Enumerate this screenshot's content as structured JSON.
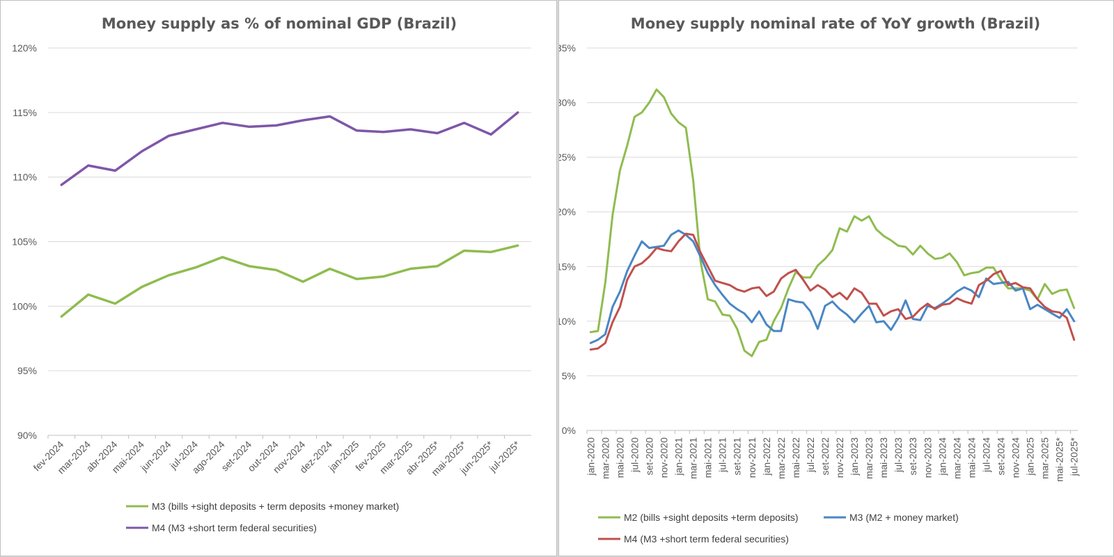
{
  "chart_data": [
    {
      "type": "line",
      "title": "Money supply as % of nominal GDP (Brazil)",
      "ylim": [
        0.9,
        1.2
      ],
      "yticks": [
        {
          "value": 0.9,
          "label": "90%"
        },
        {
          "value": 0.95,
          "label": "95%"
        },
        {
          "value": 1.0,
          "label": "100%"
        },
        {
          "value": 1.05,
          "label": "105%"
        },
        {
          "value": 1.1,
          "label": "110%"
        },
        {
          "value": 1.15,
          "label": "115%"
        },
        {
          "value": 1.2,
          "label": "120%"
        }
      ],
      "categories": [
        "fev-2024",
        "mar-2024",
        "abr-2024",
        "mai-2024",
        "jun-2024",
        "jul-2024",
        "ago-2024",
        "set-2024",
        "out-2024",
        "nov-2024",
        "dez-2024",
        "jan-2025",
        "fev-2025",
        "mar-2025",
        "abr-2025*",
        "mai-2025*",
        "jun-2025*",
        "jul-2025*"
      ],
      "series": [
        {
          "name": "M3 (bills +sight deposits + term deposits +money market)",
          "color": "#8fbc4f",
          "values": [
            0.992,
            1.009,
            1.002,
            1.015,
            1.024,
            1.03,
            1.038,
            1.031,
            1.028,
            1.019,
            1.029,
            1.021,
            1.023,
            1.029,
            1.031,
            1.043,
            1.042,
            1.047
          ]
        },
        {
          "name": "M4 (M3 +short term federal securities)",
          "color": "#7e57a8",
          "values": [
            1.094,
            1.109,
            1.105,
            1.12,
            1.132,
            1.137,
            1.142,
            1.139,
            1.14,
            1.144,
            1.147,
            1.136,
            1.135,
            1.137,
            1.134,
            1.142,
            1.133,
            1.15
          ]
        }
      ],
      "legend": "bottom"
    },
    {
      "type": "line",
      "title": "Money supply nominal rate of YoY growth (Brazil)",
      "ylim": [
        0,
        0.35
      ],
      "yticks": [
        {
          "value": 0.0,
          "label": "0%"
        },
        {
          "value": 0.05,
          "label": "5%"
        },
        {
          "value": 0.1,
          "label": "10%"
        },
        {
          "value": 0.15,
          "label": "15%"
        },
        {
          "value": 0.2,
          "label": "20%"
        },
        {
          "value": 0.25,
          "label": "25%"
        },
        {
          "value": 0.3,
          "label": "30%"
        },
        {
          "value": 0.35,
          "label": "35%"
        }
      ],
      "xticks": [
        "jan-2020",
        "mar-2020",
        "mai-2020",
        "jul-2020",
        "set-2020",
        "nov-2020",
        "jan-2021",
        "mar-2021",
        "mai-2021",
        "jul-2021",
        "set-2021",
        "nov-2021",
        "jan-2022",
        "mar-2022",
        "mai-2022",
        "jul-2022",
        "set-2022",
        "nov-2022",
        "jan-2023",
        "mar-2023",
        "mai-2023",
        "jul-2023",
        "set-2023",
        "nov-2023",
        "jan-2024",
        "mar-2024",
        "mai-2024",
        "jul-2024",
        "set-2024",
        "nov-2024",
        "jan-2025",
        "mar-2025",
        "mai-2025*",
        "jul-2025*"
      ],
      "n_points": 67,
      "series": [
        {
          "name": "M2 (bills +sight deposits +term deposits)",
          "color": "#8fbc4f",
          "values": [
            0.09,
            0.091,
            0.135,
            0.197,
            0.238,
            0.261,
            0.287,
            0.291,
            0.3,
            0.312,
            0.305,
            0.29,
            0.282,
            0.277,
            0.229,
            0.155,
            0.12,
            0.118,
            0.106,
            0.105,
            0.093,
            0.073,
            0.068,
            0.081,
            0.083,
            0.1,
            0.112,
            0.13,
            0.145,
            0.14,
            0.14,
            0.151,
            0.157,
            0.165,
            0.185,
            0.182,
            0.196,
            0.192,
            0.196,
            0.184,
            0.178,
            0.174,
            0.169,
            0.168,
            0.161,
            0.169,
            0.162,
            0.157,
            0.158,
            0.162,
            0.154,
            0.142,
            0.144,
            0.145,
            0.149,
            0.149,
            0.138,
            0.13,
            0.13,
            0.13,
            0.128,
            0.12,
            0.134,
            0.125,
            0.128,
            0.129,
            0.112
          ]
        },
        {
          "name": "M3 (M2 + money market)",
          "color": "#4a86c5",
          "values": [
            0.08,
            0.083,
            0.088,
            0.113,
            0.127,
            0.146,
            0.16,
            0.173,
            0.167,
            0.168,
            0.169,
            0.179,
            0.183,
            0.179,
            0.173,
            0.159,
            0.144,
            0.133,
            0.124,
            0.116,
            0.111,
            0.107,
            0.099,
            0.109,
            0.097,
            0.091,
            0.091,
            0.12,
            0.118,
            0.117,
            0.109,
            0.093,
            0.114,
            0.118,
            0.111,
            0.106,
            0.099,
            0.107,
            0.114,
            0.099,
            0.1,
            0.092,
            0.103,
            0.119,
            0.102,
            0.101,
            0.114,
            0.112,
            0.116,
            0.121,
            0.127,
            0.131,
            0.128,
            0.122,
            0.139,
            0.134,
            0.135,
            0.136,
            0.128,
            0.13,
            0.111,
            0.115,
            0.111,
            0.107,
            0.103,
            0.111,
            0.1
          ]
        },
        {
          "name": "M4 (M3 +short term federal securities)",
          "color": "#c0504d",
          "values": [
            0.074,
            0.075,
            0.08,
            0.099,
            0.113,
            0.138,
            0.15,
            0.153,
            0.159,
            0.167,
            0.165,
            0.164,
            0.173,
            0.18,
            0.179,
            0.163,
            0.15,
            0.137,
            0.135,
            0.133,
            0.129,
            0.127,
            0.13,
            0.131,
            0.123,
            0.127,
            0.139,
            0.144,
            0.147,
            0.138,
            0.128,
            0.133,
            0.129,
            0.122,
            0.126,
            0.12,
            0.13,
            0.126,
            0.116,
            0.116,
            0.105,
            0.109,
            0.111,
            0.102,
            0.104,
            0.111,
            0.116,
            0.111,
            0.115,
            0.116,
            0.121,
            0.118,
            0.116,
            0.133,
            0.137,
            0.143,
            0.146,
            0.133,
            0.135,
            0.131,
            0.13,
            0.12,
            0.113,
            0.109,
            0.108,
            0.103,
            0.083
          ]
        }
      ],
      "legend": "bottom"
    }
  ]
}
